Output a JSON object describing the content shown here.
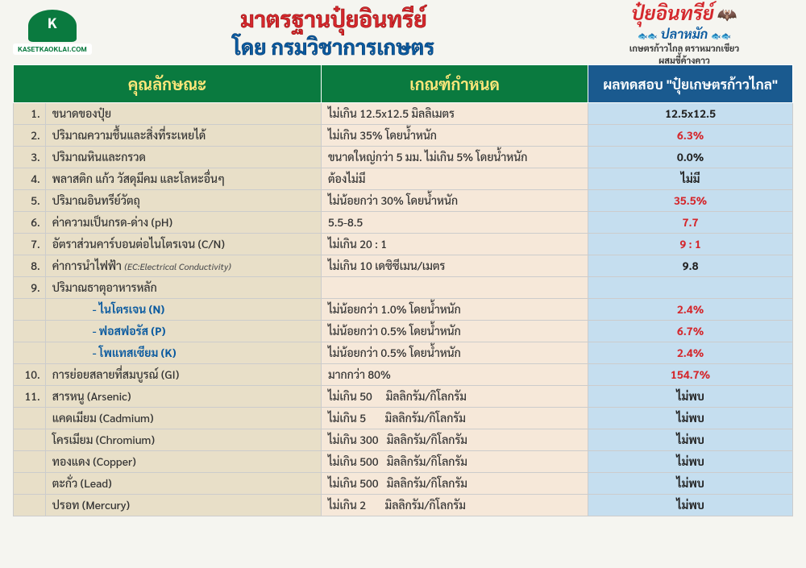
{
  "header": {
    "logo_url": "KASETKAOKLAI.COM",
    "title_main": "มาตรฐานปุ๋ยอินทรีย์",
    "title_sub": "โดย กรมวิชาการเกษตร",
    "brand_main": "ปุ๋ยอินทรีย์",
    "brand_sub": "ปลาหมัก",
    "brand_line1": "เกษตรก้าวไกล ตราหมวกเขียว",
    "brand_line2": "ผสมขี้ค้างคาว"
  },
  "columns": {
    "prop": "คุณลักษณะ",
    "std": "เกณฑ์กำหนด",
    "result": "ผลทดสอบ \"ปุ๋ยเกษตรก้าวไกล\""
  },
  "rows": [
    {
      "num": "1.",
      "prop": "ขนาดของปุ๋ย",
      "std": "ไม่เกิน 12.5x12.5 มิลลิเมตร",
      "result": "12.5x12.5",
      "color": "black"
    },
    {
      "num": "2.",
      "prop": "ปริมาณความชื้นและสิ่งที่ระเหยได้",
      "std": "ไม่เกิน 35% โดยน้ำหนัก",
      "result": "6.3%",
      "color": "red"
    },
    {
      "num": "3.",
      "prop": "ปริมาณหินและกรวด",
      "std": "ขนาดใหญ่กว่า 5 มม. ไม่เกิน 5% โดยน้ำหนัก",
      "result": "0.0%",
      "color": "black"
    },
    {
      "num": "4.",
      "prop": "พลาสติก แก้ว วัสดุมีคม และโลหะอื่นๆ",
      "std": "ต้องไม่มี",
      "result": "ไม่มี",
      "color": "black"
    },
    {
      "num": "5.",
      "prop": "ปริมาณอินทรีย์วัตถุ",
      "std": "ไม่น้อยกว่า 30% โดยน้ำหนัก",
      "result": "35.5%",
      "color": "red"
    },
    {
      "num": "6.",
      "prop": "ค่าความเป็นกรด-ด่าง (pH)",
      "std": "5.5-8.5",
      "result": "7.7",
      "color": "red"
    },
    {
      "num": "7.",
      "prop": "อัตราส่วนคาร์บอนต่อไนโตรเจน (C/N)",
      "std": "ไม่เกิน 20 : 1",
      "result": "9 : 1",
      "color": "red"
    },
    {
      "num": "8.",
      "prop": "ค่าการนำไฟฟ้า <span class='small-note'>(EC:Electrical Conductivity)</span>",
      "std": "ไม่เกิน 10 เดซิซีเมน/เมตร",
      "result": "9.8",
      "color": "black"
    },
    {
      "num": "9.",
      "prop": "ปริมาณธาตุอาหารหลัก",
      "std": "",
      "result": "",
      "color": "black"
    },
    {
      "num": "",
      "prop": "<span class='sub-item'>- ไนโตรเจน (N)</span>",
      "std": "ไม่น้อยกว่า 1.0% โดยน้ำหนัก",
      "result": "2.4%",
      "color": "red"
    },
    {
      "num": "",
      "prop": "<span class='sub-item'>- ฟอสฟอรัส (P)</span>",
      "std": "ไม่น้อยกว่า 0.5% โดยน้ำหนัก",
      "result": "6.7%",
      "color": "red"
    },
    {
      "num": "",
      "prop": "<span class='sub-item'>- โพแทสเซียม (K)</span>",
      "std": "ไม่น้อยกว่า 0.5% โดยน้ำหนัก",
      "result": "2.4%",
      "color": "red"
    },
    {
      "num": "10.",
      "prop": "การย่อยสลายที่สมบูรณ์ (GI)",
      "std": "มากกว่า 80%",
      "result": "154.7%",
      "color": "red"
    },
    {
      "num": "11.",
      "prop": "สารหนู (Arsenic)",
      "std": "ไม่เกิน 50&nbsp;&nbsp;&nbsp;&nbsp;&nbsp;มิลลิกรัม/กิโลกรัม",
      "result": "ไม่พบ",
      "color": "black"
    },
    {
      "num": "",
      "prop": "แคดเมียม (Cadmium)",
      "std": "ไม่เกิน 5&nbsp;&nbsp;&nbsp;&nbsp;&nbsp;&nbsp;&nbsp;มิลลิกรัม/กิโลกรัม",
      "result": "ไม่พบ",
      "color": "black"
    },
    {
      "num": "",
      "prop": "โครเมียม (Chromium)",
      "std": "ไม่เกิน 300&nbsp;&nbsp;&nbsp;มิลลิกรัม/กิโลกรัม",
      "result": "ไม่พบ",
      "color": "black"
    },
    {
      "num": "",
      "prop": "ทองแดง (Copper)",
      "std": "ไม่เกิน 500&nbsp;&nbsp;&nbsp;มิลลิกรัม/กิโลกรัม",
      "result": "ไม่พบ",
      "color": "black"
    },
    {
      "num": "",
      "prop": "ตะกั่ว (Lead)",
      "std": "ไม่เกิน 500&nbsp;&nbsp;&nbsp;มิลลิกรัม/กิโลกรัม",
      "result": "ไม่พบ",
      "color": "black"
    },
    {
      "num": "",
      "prop": "ปรอท (Mercury)",
      "std": "ไม่เกิน 2&nbsp;&nbsp;&nbsp;&nbsp;&nbsp;&nbsp;&nbsp;มิลลิกรัม/กิโลกรัม",
      "result": "ไม่พบ",
      "color": "black"
    }
  ],
  "colors": {
    "header_green": "#0a7a3f",
    "header_blue": "#1a5a8f",
    "header_yellow": "#ffe77a",
    "prop_bg": "#e8dfc8",
    "std_bg": "#f6e8d9",
    "result_bg": "#c5deef",
    "red_text": "#d4282d",
    "blue_text": "#0a5a9f"
  }
}
